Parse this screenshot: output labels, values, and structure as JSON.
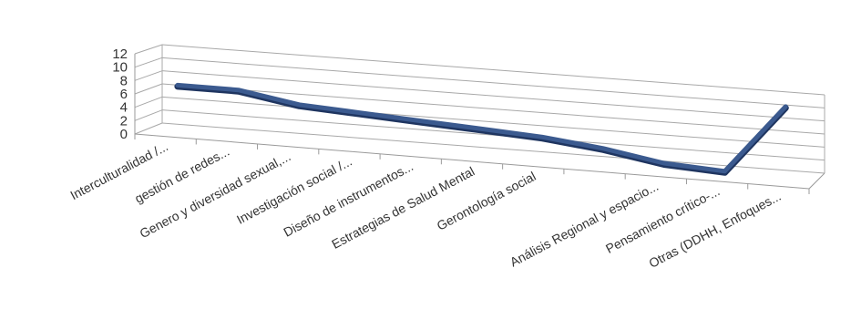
{
  "chart_data": {
    "type": "line",
    "style": "3d",
    "title": "",
    "xlabel": "",
    "ylabel": "",
    "ylim": [
      0,
      12
    ],
    "yticks": [
      "0",
      "2",
      "4",
      "6",
      "8",
      "10",
      "12"
    ],
    "grid": true,
    "legend": "none",
    "line_color": "#3b5a8f",
    "categories": [
      "Interculturalidad /...",
      "gestión de redes...",
      "Genero y diversidad sexual,...",
      "Investigación social /...",
      "Diseño de instrumentos...",
      "Estrategias de Salud Mental",
      "Gerontología social",
      "",
      "Análisis Regional y espacio...",
      "Pensamiento crítico-...",
      "Otras (DDHH, Enfoques..."
    ],
    "values": [
      7,
      7,
      5.5,
      5,
      4.5,
      4,
      3.5,
      2.5,
      1,
      0.5,
      11
    ]
  }
}
